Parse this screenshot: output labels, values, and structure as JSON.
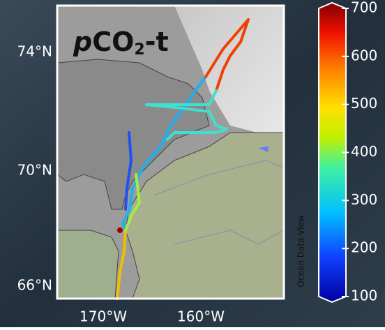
{
  "map": {
    "title": {
      "italic": "p",
      "main": "CO",
      "sub": "2",
      "tail": "-t"
    },
    "lat_labels": [
      "74°N",
      "70°N",
      "66°N"
    ],
    "lon_labels": [
      "170°W",
      "160°W"
    ],
    "watermark": "Ocean Data View"
  },
  "colorbar": {
    "lim": [
      100,
      700
    ],
    "ticks": [
      100,
      200,
      300,
      400,
      500,
      600,
      700
    ]
  }
}
